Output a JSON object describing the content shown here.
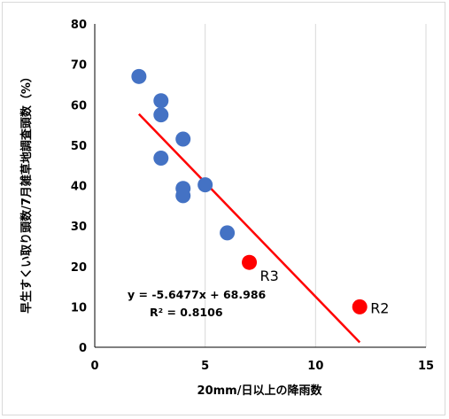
{
  "chart_data": {
    "type": "scatter",
    "xlabel": "20mm/日以上の降雨数",
    "ylabel": "早生すくい取り頭数/7月雑草地調査頭数（%）",
    "xlim": [
      0,
      15
    ],
    "ylim": [
      0,
      80
    ],
    "x_ticks": [
      "0",
      "5",
      "10",
      "15"
    ],
    "y_ticks": [
      "0",
      "10",
      "20",
      "30",
      "40",
      "50",
      "60",
      "70",
      "80"
    ],
    "grid": "vertical",
    "series": [
      {
        "color": "#4472c4",
        "points": [
          {
            "x": 2,
            "y": 67
          },
          {
            "x": 3,
            "y": 61
          },
          {
            "x": 3,
            "y": 57.5
          },
          {
            "x": 3,
            "y": 46.8
          },
          {
            "x": 4,
            "y": 51.5
          },
          {
            "x": 4,
            "y": 39.3
          },
          {
            "x": 4,
            "y": 37.5
          },
          {
            "x": 5,
            "y": 40.2
          },
          {
            "x": 6,
            "y": 28.3
          }
        ]
      },
      {
        "color": "#ff0000",
        "points": [
          {
            "x": 7,
            "y": 21,
            "label": "R3"
          },
          {
            "x": 12,
            "y": 10,
            "label": "R2"
          }
        ]
      }
    ],
    "trendline": {
      "slope": -5.6477,
      "intercept": 68.986,
      "x_range": [
        2,
        12
      ],
      "color": "#ff0000",
      "equation": "y = -5.6477x + 68.986",
      "r_squared": "R² = 0.8106"
    }
  }
}
